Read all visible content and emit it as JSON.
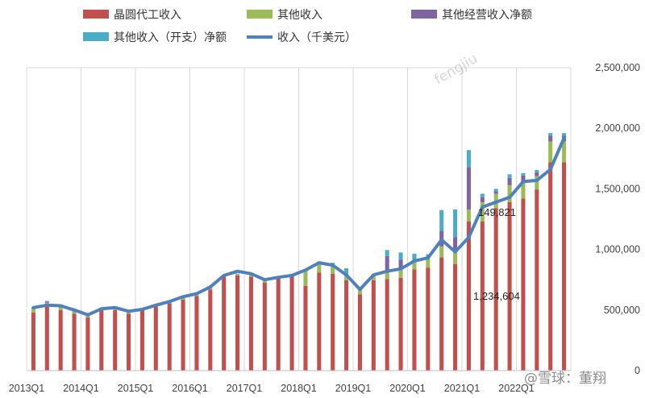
{
  "chart_data": {
    "type": "bar",
    "stacked": true,
    "x_tick_labels": [
      "2013Q1",
      "2014Q1",
      "2015Q1",
      "2016Q1",
      "2017Q1",
      "2018Q1",
      "2019Q1",
      "2020Q1",
      "2021Q1",
      "2022Q1"
    ],
    "y_tick_labels": [
      "0",
      "500,000",
      "1,000,000",
      "1,500,000",
      "2,000,000",
      "2,500,000"
    ],
    "ylim": [
      0,
      2500000
    ],
    "y_axis_side": "right",
    "grid": "vertical-major",
    "legend_position": "top",
    "categories": [
      "2013Q1",
      "2013Q2",
      "2013Q3",
      "2013Q4",
      "2014Q1",
      "2014Q2",
      "2014Q3",
      "2014Q4",
      "2015Q1",
      "2015Q2",
      "2015Q3",
      "2015Q4",
      "2016Q1",
      "2016Q2",
      "2016Q3",
      "2016Q4",
      "2017Q1",
      "2017Q2",
      "2017Q3",
      "2017Q4",
      "2018Q1",
      "2018Q2",
      "2018Q3",
      "2018Q4",
      "2019Q1",
      "2019Q2",
      "2019Q3",
      "2019Q4",
      "2020Q1",
      "2020Q2",
      "2020Q3",
      "2020Q4",
      "2021Q1",
      "2021Q2",
      "2021Q3",
      "2021Q4",
      "2022Q1",
      "2022Q2",
      "2022Q3",
      "2022Q4"
    ],
    "series": [
      {
        "name": "晶圆代工收入",
        "kind": "bar",
        "color": "#c0504d",
        "values": [
          480000,
          550000,
          500000,
          470000,
          440000,
          505000,
          500000,
          470000,
          505000,
          530000,
          555000,
          585000,
          615000,
          670000,
          775000,
          785000,
          775000,
          725000,
          760000,
          780000,
          700000,
          810000,
          800000,
          745000,
          630000,
          745000,
          755000,
          765000,
          835000,
          850000,
          935000,
          880000,
          1230000,
          1230000,
          1340000,
          1390000,
          1420000,
          1495000,
          1720000,
          1720000
        ]
      },
      {
        "name": "其他收入",
        "kind": "bar",
        "color": "#9bbb59",
        "values": [
          30000,
          10000,
          35000,
          25000,
          15000,
          10000,
          25000,
          10000,
          5000,
          15000,
          15000,
          25000,
          15000,
          15000,
          5000,
          10000,
          20000,
          20000,
          5000,
          5000,
          130000,
          80000,
          60000,
          40000,
          50000,
          40000,
          60000,
          80000,
          60000,
          70000,
          90000,
          100000,
          100000,
          160000,
          120000,
          140000,
          130000,
          110000,
          170000,
          170000
        ]
      },
      {
        "name": "其他经营收入净额",
        "kind": "bar",
        "color": "#8064a2",
        "values": [
          0,
          10000,
          0,
          0,
          0,
          0,
          0,
          0,
          0,
          0,
          0,
          0,
          0,
          0,
          0,
          0,
          0,
          0,
          0,
          0,
          0,
          0,
          0,
          0,
          0,
          0,
          130000,
          70000,
          0,
          0,
          130000,
          120000,
          350000,
          40000,
          20000,
          60000,
          60000,
          30000,
          50000,
          50000
        ]
      },
      {
        "name": "其他收入（开支）净额",
        "kind": "bar",
        "color": "#4bacc6",
        "values": [
          10000,
          5000,
          5000,
          5000,
          5000,
          5000,
          5000,
          5000,
          5000,
          5000,
          5000,
          5000,
          5000,
          5000,
          5000,
          5000,
          5000,
          5000,
          5000,
          5000,
          5000,
          10000,
          30000,
          60000,
          10000,
          10000,
          50000,
          60000,
          70000,
          40000,
          170000,
          230000,
          140000,
          30000,
          20000,
          30000,
          20000,
          20000,
          20000,
          20000
        ]
      },
      {
        "name": "收入（千美元）",
        "kind": "line",
        "color": "#4f81bd",
        "values": [
          520000,
          540000,
          535000,
          500000,
          460000,
          510000,
          520000,
          490000,
          505000,
          540000,
          570000,
          610000,
          635000,
          690000,
          785000,
          820000,
          800000,
          750000,
          770000,
          785000,
          830000,
          890000,
          870000,
          790000,
          670000,
          790000,
          820000,
          840000,
          905000,
          930000,
          1080000,
          980000,
          1100000,
          1350000,
          1390000,
          1430000,
          1560000,
          1570000,
          1660000,
          1920000
        ]
      }
    ],
    "annotations": [
      "149,821",
      "1,234,604"
    ],
    "watermarks": [
      "@雪球：董翔",
      "fengjiu"
    ]
  }
}
